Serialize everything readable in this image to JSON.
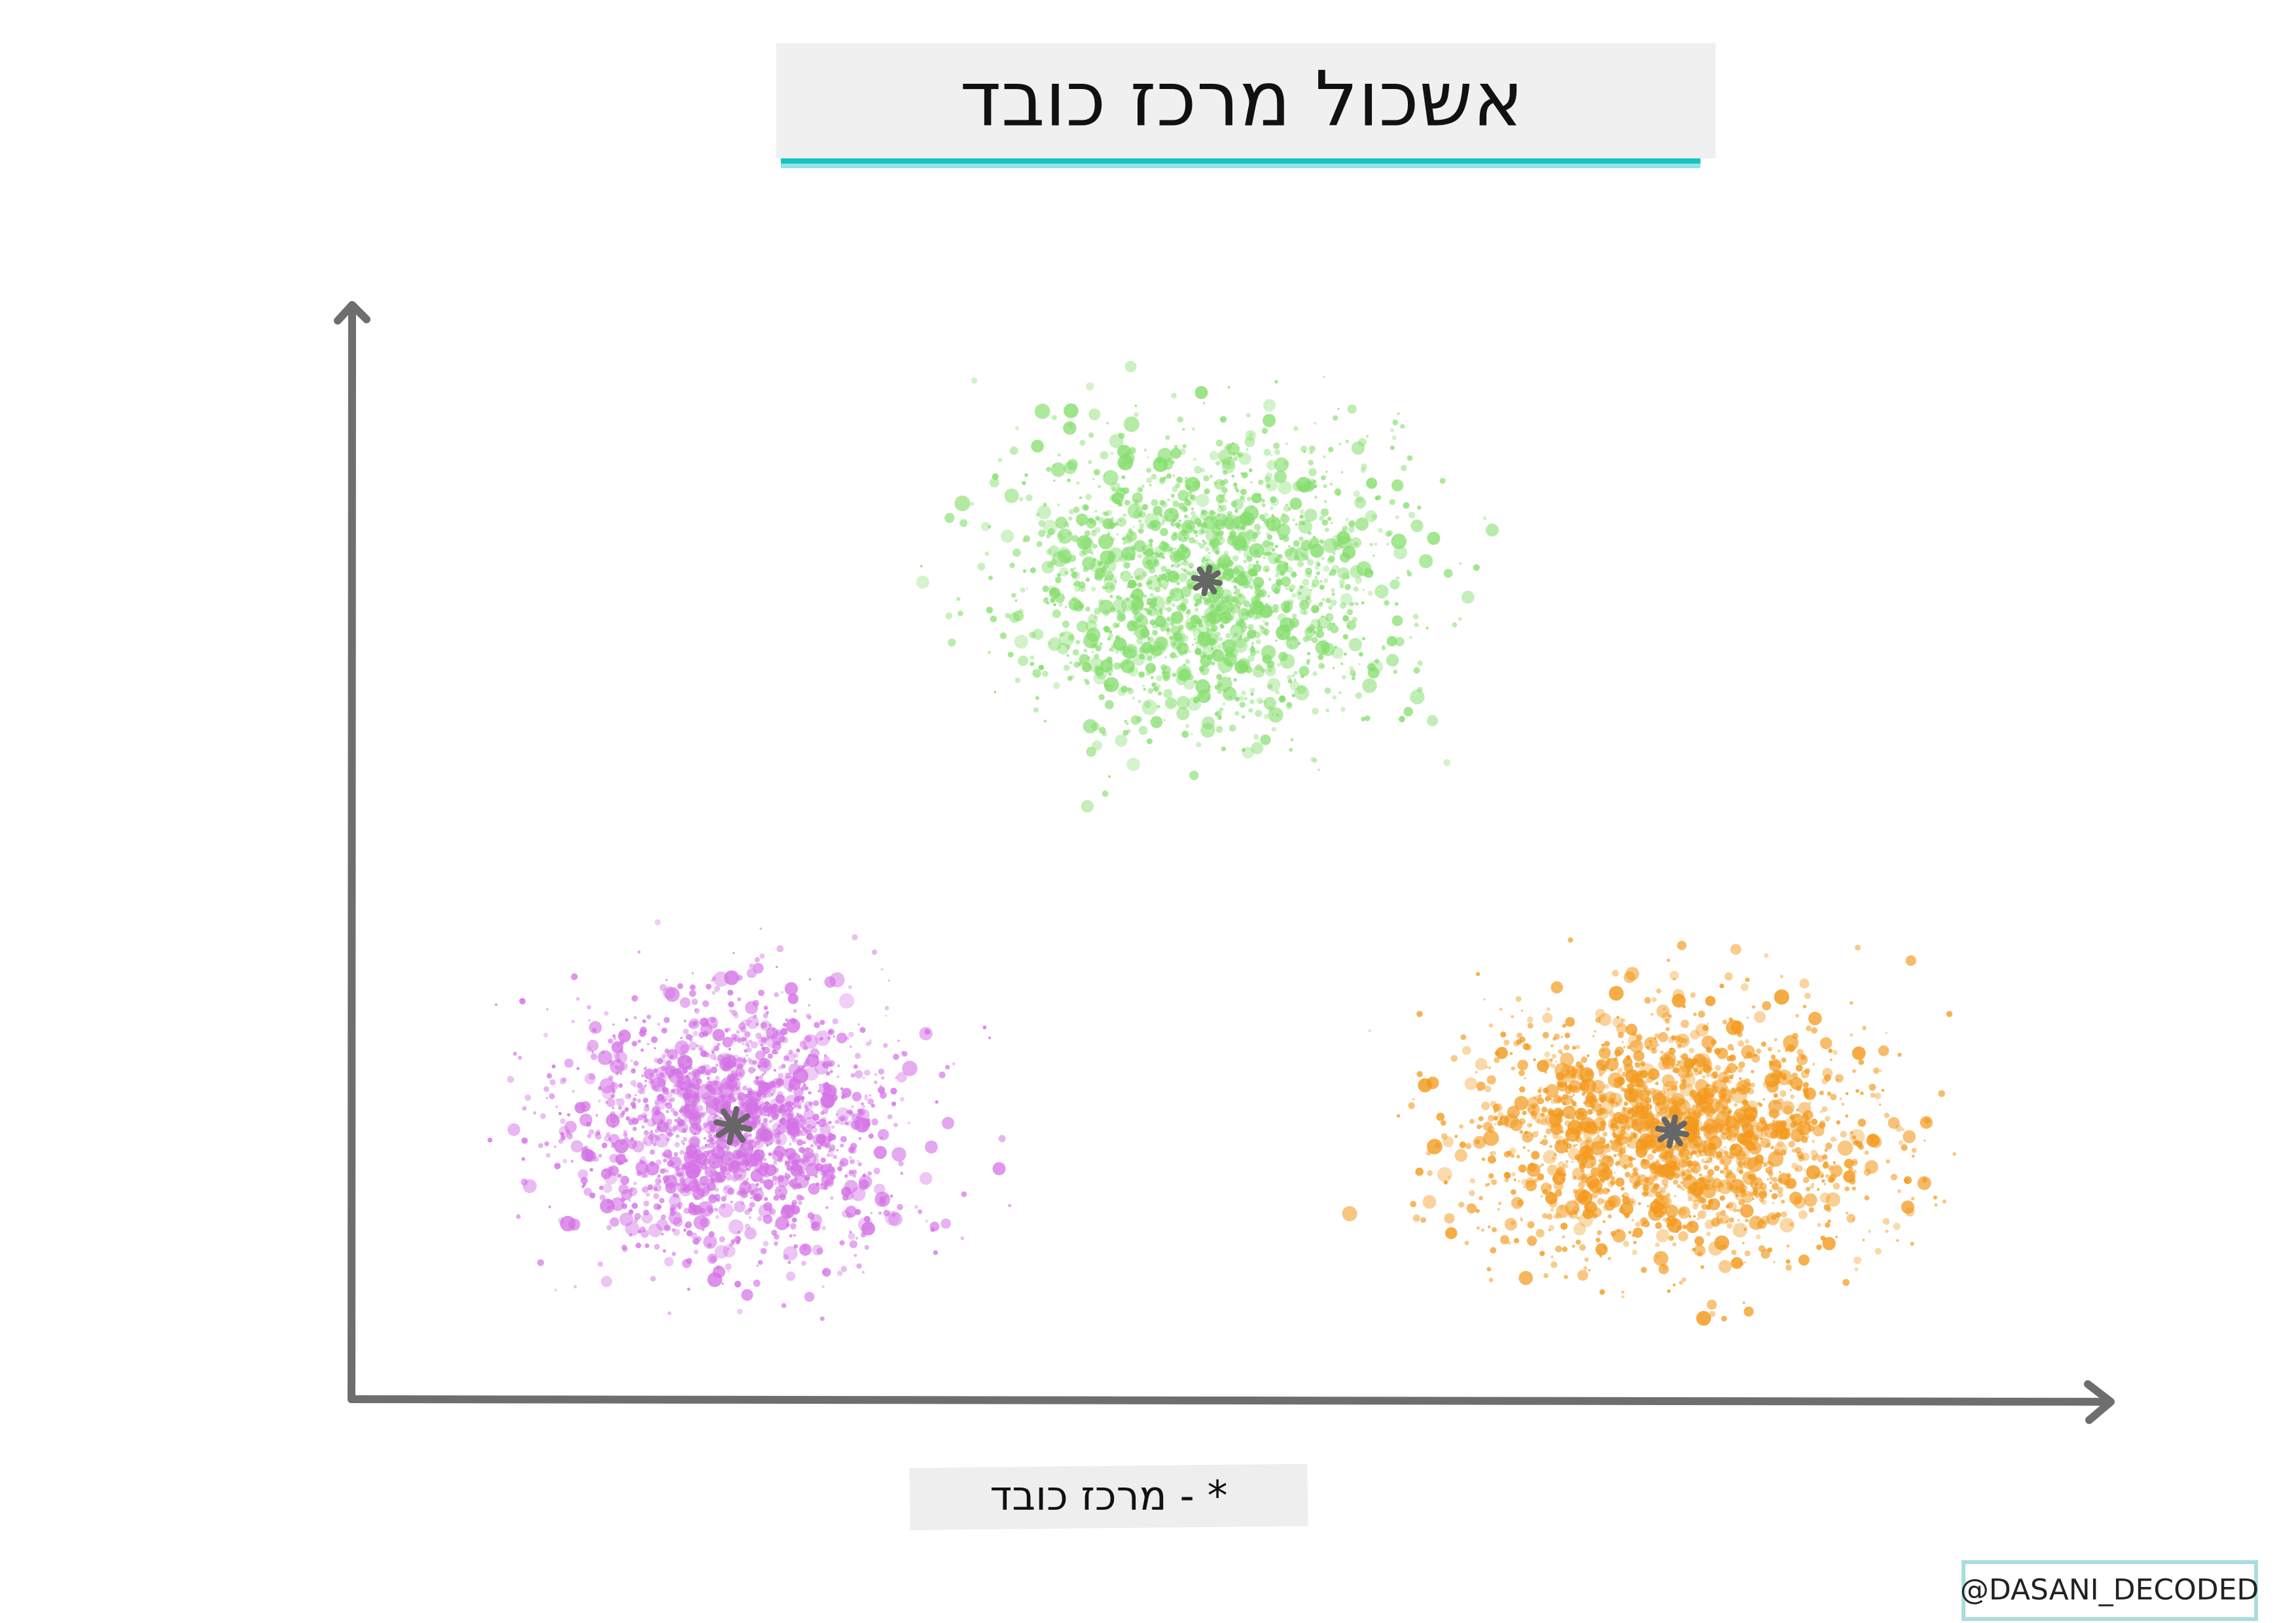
{
  "title": "אשכול מרכז כובד",
  "legend": "* - מרכז כובד",
  "credit": "@DASANI_DECODED"
}
